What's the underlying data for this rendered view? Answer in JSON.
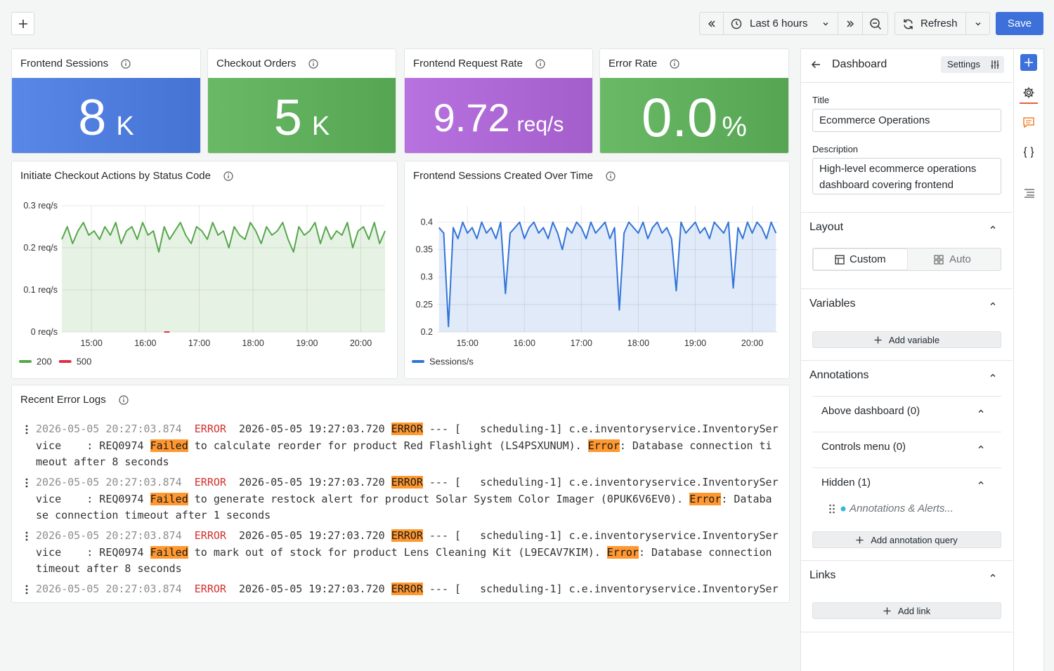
{
  "toolbar": {
    "time_range": "Last 6 hours",
    "refresh": "Refresh",
    "save": "Save"
  },
  "stats": [
    {
      "title": "Frontend Sessions",
      "value": "8",
      "unit": "K",
      "color": "#4b7de6"
    },
    {
      "title": "Checkout Orders",
      "value": "5",
      "unit": "K",
      "color": "#5db35a"
    },
    {
      "title": "Frontend Request Rate",
      "value": "9.72",
      "unit": "req/s",
      "color": "#b266dd"
    },
    {
      "title": "Error Rate",
      "value": "0.0",
      "unit": "%",
      "color": "#5db35a"
    }
  ],
  "chart_data": [
    {
      "type": "line",
      "title": "Initiate Checkout Actions by Status Code",
      "x": [
        "14:27",
        "14:33",
        "14:39",
        "14:45",
        "14:51",
        "14:57",
        "15:03",
        "15:09",
        "15:15",
        "15:21",
        "15:27",
        "15:33",
        "15:39",
        "15:45",
        "15:51",
        "15:57",
        "16:03",
        "16:09",
        "16:15",
        "16:21",
        "16:27",
        "16:33",
        "16:39",
        "16:45",
        "16:51",
        "16:57",
        "17:03",
        "17:09",
        "17:15",
        "17:21",
        "17:27",
        "17:33",
        "17:39",
        "17:45",
        "17:51",
        "17:57",
        "18:03",
        "18:09",
        "18:15",
        "18:21",
        "18:27",
        "18:33",
        "18:39",
        "18:45",
        "18:51",
        "18:57",
        "19:03",
        "19:09",
        "19:15",
        "19:21",
        "19:27",
        "19:33",
        "19:39",
        "19:45",
        "19:51",
        "19:57",
        "20:03",
        "20:09",
        "20:15",
        "20:21",
        "20:27"
      ],
      "xlim": [
        "14:27",
        "20:27"
      ],
      "xticks": [
        "15:00",
        "16:00",
        "17:00",
        "18:00",
        "19:00",
        "20:00"
      ],
      "ylim": [
        0,
        0.3
      ],
      "yticks": [
        {
          "value": 0,
          "label": "0 req/s"
        },
        {
          "value": 0.1,
          "label": "0.1 req/s"
        },
        {
          "value": 0.2,
          "label": "0.2 req/s"
        },
        {
          "value": 0.3,
          "label": "0.3 req/s"
        }
      ],
      "grid": true,
      "series": [
        {
          "name": "200",
          "color": "#56a64b",
          "fill": true,
          "values": [
            0.22,
            0.25,
            0.21,
            0.24,
            0.26,
            0.23,
            0.24,
            0.22,
            0.25,
            0.23,
            0.26,
            0.21,
            0.24,
            0.25,
            0.22,
            0.26,
            0.23,
            0.24,
            0.19,
            0.25,
            0.22,
            0.24,
            0.26,
            0.23,
            0.21,
            0.25,
            0.24,
            0.22,
            0.26,
            0.23,
            0.24,
            0.2,
            0.25,
            0.23,
            0.22,
            0.26,
            0.24,
            0.21,
            0.25,
            0.23,
            0.24,
            0.26,
            0.22,
            0.19,
            0.25,
            0.23,
            0.24,
            0.26,
            0.21,
            0.25,
            0.22,
            0.24,
            0.23,
            0.26,
            0.2,
            0.24,
            0.25,
            0.22,
            0.26,
            0.21,
            0.24
          ]
        },
        {
          "name": "500",
          "color": "#e02f44",
          "fill": false,
          "values": [
            null,
            null,
            null,
            null,
            null,
            null,
            null,
            null,
            null,
            null,
            null,
            null,
            null,
            null,
            null,
            null,
            null,
            null,
            null,
            0,
            0,
            null,
            null,
            null,
            null,
            null,
            null,
            null,
            null,
            null,
            null,
            null,
            null,
            null,
            null,
            null,
            null,
            null,
            null,
            null,
            null,
            null,
            null,
            null,
            null,
            null,
            null,
            null,
            null,
            null,
            null,
            null,
            null,
            null,
            null,
            null,
            null,
            null,
            null,
            null,
            null
          ]
        }
      ]
    },
    {
      "type": "line",
      "title": "Frontend Sessions Created Over Time",
      "x": [
        "14:30",
        "14:35",
        "14:40",
        "14:45",
        "14:50",
        "14:55",
        "15:00",
        "15:05",
        "15:10",
        "15:15",
        "15:20",
        "15:25",
        "15:30",
        "15:35",
        "15:40",
        "15:45",
        "15:50",
        "15:55",
        "16:00",
        "16:05",
        "16:10",
        "16:15",
        "16:20",
        "16:25",
        "16:30",
        "16:35",
        "16:40",
        "16:45",
        "16:50",
        "16:55",
        "17:00",
        "17:05",
        "17:10",
        "17:15",
        "17:20",
        "17:25",
        "17:30",
        "17:35",
        "17:40",
        "17:45",
        "17:50",
        "17:55",
        "18:00",
        "18:05",
        "18:10",
        "18:15",
        "18:20",
        "18:25",
        "18:30",
        "18:35",
        "18:40",
        "18:45",
        "18:50",
        "18:55",
        "19:00",
        "19:05",
        "19:10",
        "19:15",
        "19:20",
        "19:25",
        "19:30",
        "19:35",
        "19:40",
        "19:45",
        "19:50",
        "19:55",
        "20:00",
        "20:05",
        "20:10",
        "20:15",
        "20:20",
        "20:25"
      ],
      "xlim": [
        "14:28",
        "20:27"
      ],
      "xticks": [
        "15:00",
        "16:00",
        "17:00",
        "18:00",
        "19:00",
        "20:00"
      ],
      "ylim": [
        0.2,
        0.43
      ],
      "yticks": [
        0.2,
        0.25,
        0.3,
        0.35,
        0.4
      ],
      "grid": true,
      "series": [
        {
          "name": "Sessions/s",
          "color": "#3274d9",
          "fill": true,
          "values": [
            0.39,
            0.38,
            0.21,
            0.39,
            0.37,
            0.4,
            0.38,
            0.39,
            0.37,
            0.4,
            0.38,
            0.39,
            0.37,
            0.4,
            0.27,
            0.38,
            0.39,
            0.4,
            0.37,
            0.39,
            0.4,
            0.38,
            0.39,
            0.37,
            0.4,
            0.38,
            0.35,
            0.39,
            0.38,
            0.4,
            0.39,
            0.37,
            0.4,
            0.38,
            0.39,
            0.4,
            0.37,
            0.39,
            0.24,
            0.38,
            0.4,
            0.39,
            0.38,
            0.4,
            0.37,
            0.39,
            0.4,
            0.38,
            0.39,
            0.37,
            0.275,
            0.4,
            0.38,
            0.39,
            0.4,
            0.38,
            0.39,
            0.37,
            0.4,
            0.39,
            0.38,
            0.4,
            0.28,
            0.39,
            0.37,
            0.4,
            0.38,
            0.4,
            0.39,
            0.37,
            0.4,
            0.38
          ]
        }
      ]
    }
  ],
  "logs": {
    "title": "Recent Error Logs",
    "rows": [
      {
        "timestamp": "2026-05-05 20:27:03.874",
        "level": "ERROR",
        "parts": [
          {
            "text": "2026-05-05 19:27:03.720 ",
            "highlight": false
          },
          {
            "text": "ERROR",
            "highlight": true
          },
          {
            "text": " --- [   scheduling-1] c.e.inventoryservice.InventoryService    : REQ0974 ",
            "highlight": false
          },
          {
            "text": "Failed",
            "highlight": true
          },
          {
            "text": " to calculate reorder for product Red Flashlight (LS4PSXUNUM). ",
            "highlight": false
          },
          {
            "text": "Error",
            "highlight": true
          },
          {
            "text": ": Database connection timeout after 8 seconds",
            "highlight": false
          }
        ]
      },
      {
        "timestamp": "2026-05-05 20:27:03.874",
        "level": "ERROR",
        "parts": [
          {
            "text": "2026-05-05 19:27:03.720 ",
            "highlight": false
          },
          {
            "text": "ERROR",
            "highlight": true
          },
          {
            "text": " --- [   scheduling-1] c.e.inventoryservice.InventoryService    : REQ0974 ",
            "highlight": false
          },
          {
            "text": "Failed",
            "highlight": true
          },
          {
            "text": " to generate restock alert for product Solar System Color Imager (0PUK6V6EV0). ",
            "highlight": false
          },
          {
            "text": "Error",
            "highlight": true
          },
          {
            "text": ": Database connection timeout after 1 seconds",
            "highlight": false
          }
        ]
      },
      {
        "timestamp": "2026-05-05 20:27:03.874",
        "level": "ERROR",
        "parts": [
          {
            "text": "2026-05-05 19:27:03.720 ",
            "highlight": false
          },
          {
            "text": "ERROR",
            "highlight": true
          },
          {
            "text": " --- [   scheduling-1] c.e.inventoryservice.InventoryService    : REQ0974 ",
            "highlight": false
          },
          {
            "text": "Failed",
            "highlight": true
          },
          {
            "text": " to mark out of stock for product Lens Cleaning Kit (L9ECAV7KIM). ",
            "highlight": false
          },
          {
            "text": "Error",
            "highlight": true
          },
          {
            "text": ": Database connection timeout after 8 seconds",
            "highlight": false
          }
        ]
      },
      {
        "timestamp": "2026-05-05 20:27:03.874",
        "level": "ERROR",
        "parts": [
          {
            "text": "2026-05-05 19:27:03.720 ",
            "highlight": false
          },
          {
            "text": "ERROR",
            "highlight": true
          },
          {
            "text": " --- [   scheduling-1] c.e.inventoryservice.InventorySer",
            "highlight": false
          }
        ]
      }
    ]
  },
  "sidebar": {
    "header": "Dashboard",
    "settings": "Settings",
    "title_label": "Title",
    "title_value": "Ecommerce Operations",
    "description_label": "Description",
    "description_value": "High-level ecommerce operations dashboard covering frontend",
    "layout": {
      "title": "Layout",
      "options": [
        "Custom",
        "Auto"
      ]
    },
    "variables": {
      "title": "Variables",
      "add": "Add variable"
    },
    "annotations": {
      "title": "Annotations",
      "groups": [
        {
          "name": "Above dashboard (0)"
        },
        {
          "name": "Controls menu (0)"
        },
        {
          "name": "Hidden (1)",
          "items": [
            "Annotations & Alerts..."
          ]
        }
      ],
      "add": "Add annotation query"
    },
    "links": {
      "title": "Links",
      "add": "Add link"
    }
  }
}
